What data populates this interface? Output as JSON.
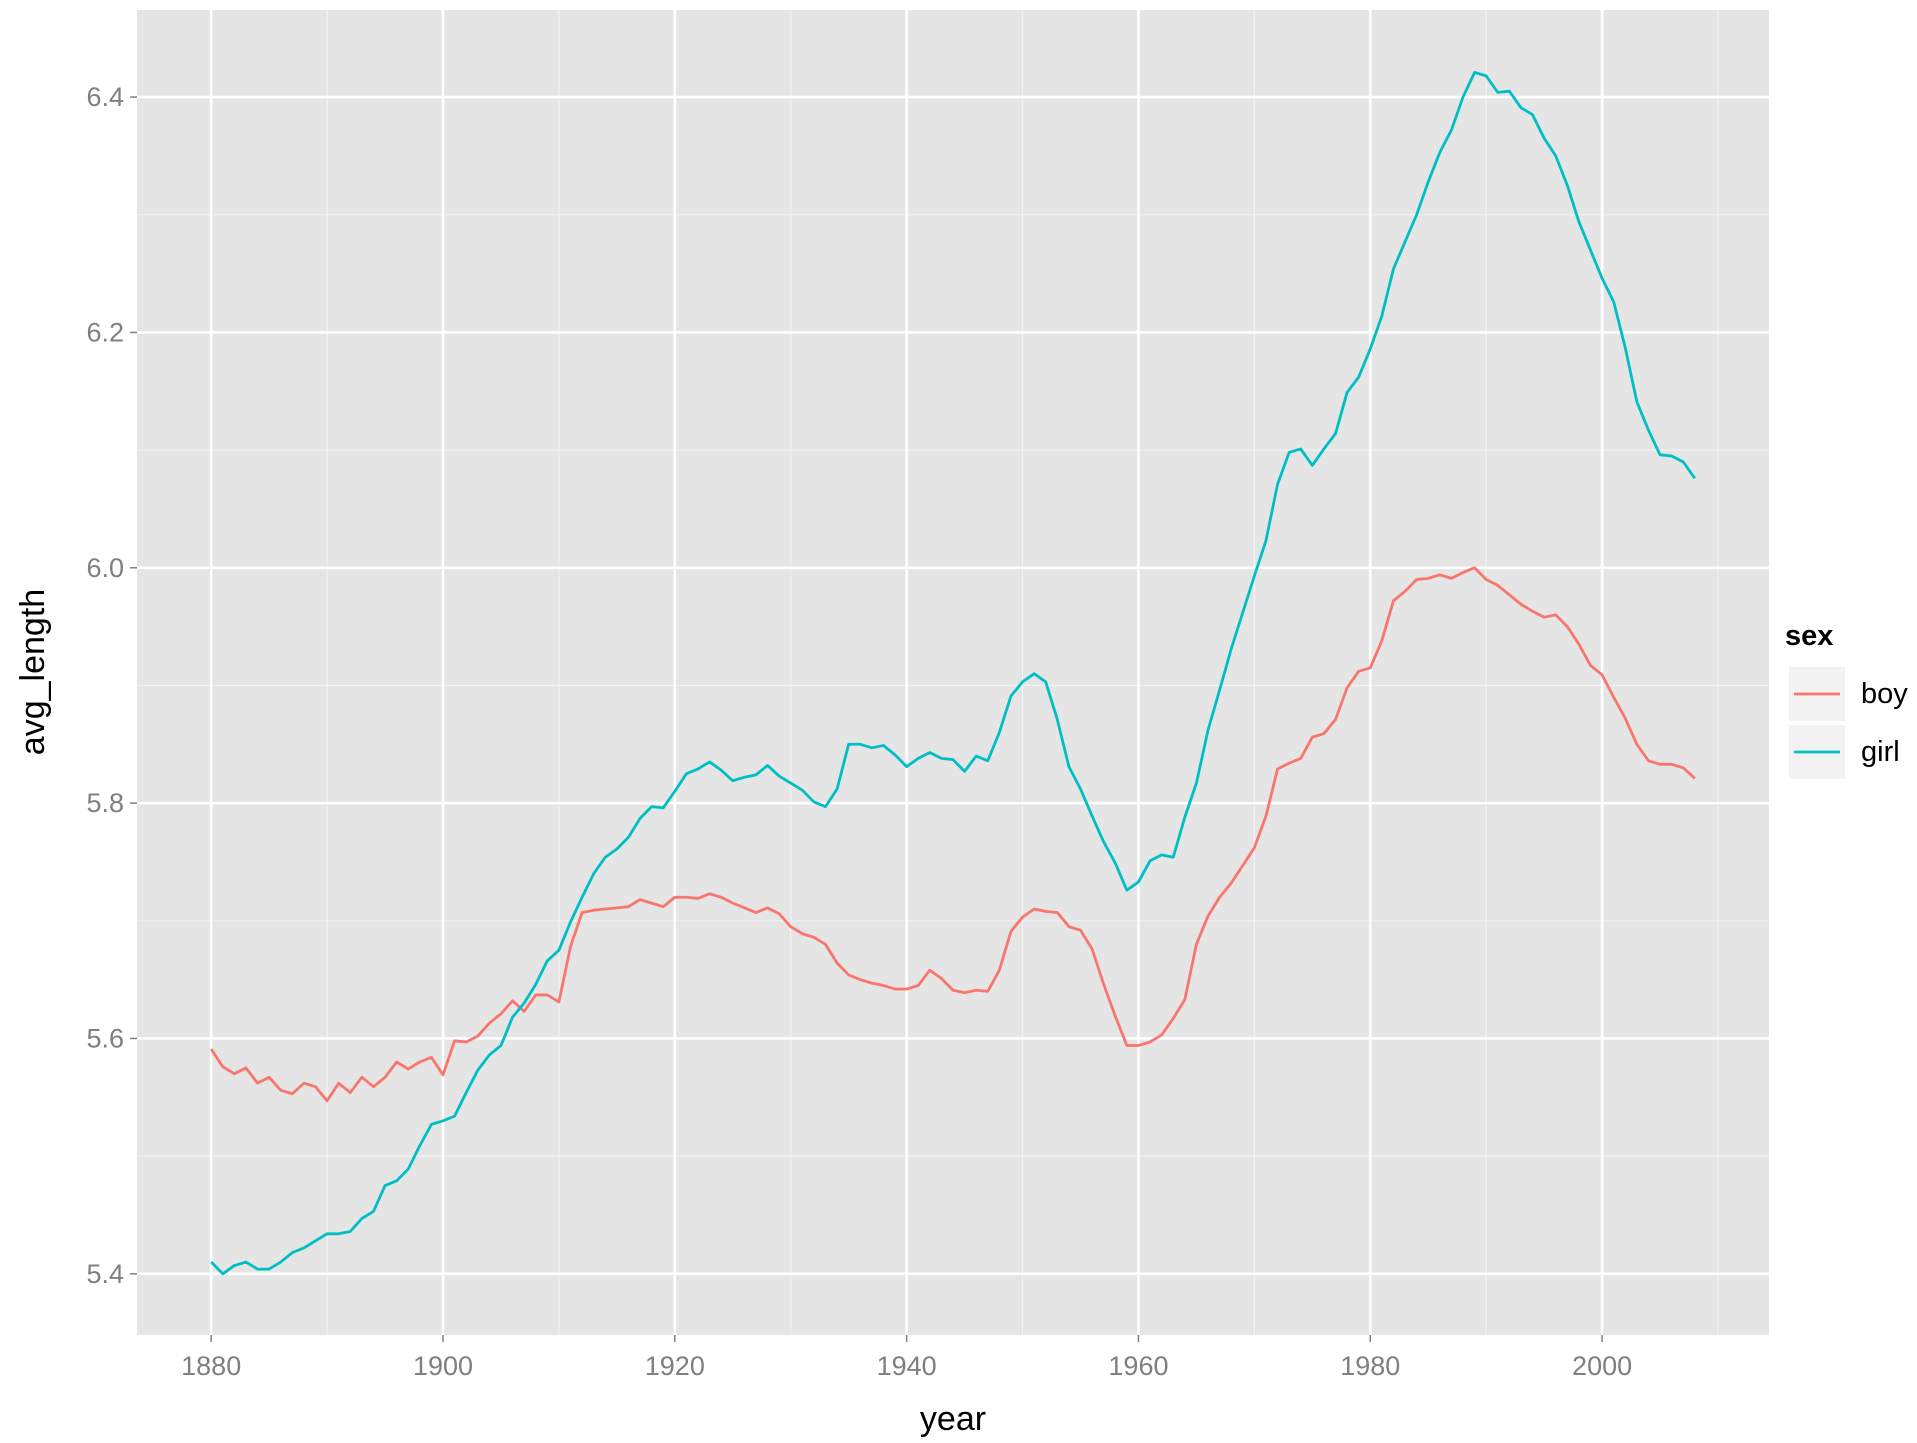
{
  "chart_data": {
    "type": "line",
    "x_label": "year",
    "y_label": "avg_length",
    "legend_title": "sex",
    "legend": "right",
    "grid": true,
    "xlim": [
      1873.6,
      2014.4
    ],
    "ylim": [
      5.348,
      6.474
    ],
    "xticks": [
      1880,
      1900,
      1920,
      1940,
      1960,
      1980,
      2000
    ],
    "yticks": [
      {
        "value": 5.4,
        "label": "5.4"
      },
      {
        "value": 5.6,
        "label": "5.6"
      },
      {
        "value": 5.8,
        "label": "5.8"
      },
      {
        "value": 6.0,
        "label": "6.0"
      },
      {
        "value": 6.2,
        "label": "6.2"
      },
      {
        "value": 6.4,
        "label": "6.4"
      }
    ],
    "x": [
      1880,
      1881,
      1882,
      1883,
      1884,
      1885,
      1886,
      1887,
      1888,
      1889,
      1890,
      1891,
      1892,
      1893,
      1894,
      1895,
      1896,
      1897,
      1898,
      1899,
      1900,
      1901,
      1902,
      1903,
      1904,
      1905,
      1906,
      1907,
      1908,
      1909,
      1910,
      1911,
      1912,
      1913,
      1914,
      1915,
      1916,
      1917,
      1918,
      1919,
      1920,
      1921,
      1922,
      1923,
      1924,
      1925,
      1926,
      1927,
      1928,
      1929,
      1930,
      1931,
      1932,
      1933,
      1934,
      1935,
      1936,
      1937,
      1938,
      1939,
      1940,
      1941,
      1942,
      1943,
      1944,
      1945,
      1946,
      1947,
      1948,
      1949,
      1950,
      1951,
      1952,
      1953,
      1954,
      1955,
      1956,
      1957,
      1958,
      1959,
      1960,
      1961,
      1962,
      1963,
      1964,
      1965,
      1966,
      1967,
      1968,
      1969,
      1970,
      1971,
      1972,
      1973,
      1974,
      1975,
      1976,
      1977,
      1978,
      1979,
      1980,
      1981,
      1982,
      1983,
      1984,
      1985,
      1986,
      1987,
      1988,
      1989,
      1990,
      1991,
      1992,
      1993,
      1994,
      1995,
      1996,
      1997,
      1998,
      1999,
      2000,
      2001,
      2002,
      2003,
      2004,
      2005,
      2006,
      2007,
      2008
    ],
    "series": [
      {
        "name": "boy",
        "color": "#f8766d",
        "values": [
          5.591,
          5.576,
          5.57,
          5.575,
          5.562,
          5.567,
          5.556,
          5.553,
          5.562,
          5.559,
          5.547,
          5.562,
          5.554,
          5.567,
          5.559,
          5.567,
          5.58,
          5.574,
          5.58,
          5.584,
          5.569,
          5.598,
          5.597,
          5.602,
          5.613,
          5.621,
          5.632,
          5.623,
          5.637,
          5.637,
          5.631,
          5.678,
          5.707,
          5.709,
          5.71,
          5.711,
          5.712,
          5.718,
          5.715,
          5.712,
          5.72,
          5.72,
          5.719,
          5.723,
          5.72,
          5.715,
          5.711,
          5.707,
          5.711,
          5.706,
          5.695,
          5.689,
          5.686,
          5.68,
          5.664,
          5.654,
          5.65,
          5.647,
          5.645,
          5.642,
          5.642,
          5.645,
          5.658,
          5.651,
          5.641,
          5.639,
          5.641,
          5.64,
          5.658,
          5.691,
          5.703,
          5.71,
          5.708,
          5.707,
          5.695,
          5.692,
          5.676,
          5.646,
          5.619,
          5.594,
          5.594,
          5.597,
          5.603,
          5.617,
          5.633,
          5.68,
          5.704,
          5.72,
          5.732,
          5.747,
          5.762,
          5.789,
          5.829,
          5.834,
          5.838,
          5.856,
          5.859,
          5.871,
          5.898,
          5.912,
          5.915,
          5.938,
          5.972,
          5.98,
          5.99,
          5.991,
          5.994,
          5.991,
          5.996,
          6.0,
          5.99,
          5.985,
          5.977,
          5.969,
          5.963,
          5.958,
          5.96,
          5.95,
          5.935,
          5.917,
          5.909,
          5.89,
          5.872,
          5.85,
          5.836,
          5.833,
          5.833,
          5.83,
          5.821
        ]
      },
      {
        "name": "girl",
        "color": "#00bfc4",
        "values": [
          5.41,
          5.4,
          5.407,
          5.41,
          5.404,
          5.404,
          5.41,
          5.418,
          5.422,
          5.428,
          5.434,
          5.434,
          5.436,
          5.447,
          5.453,
          5.475,
          5.479,
          5.489,
          5.509,
          5.527,
          5.53,
          5.534,
          5.554,
          5.573,
          5.586,
          5.594,
          5.618,
          5.63,
          5.646,
          5.666,
          5.675,
          5.699,
          5.72,
          5.74,
          5.754,
          5.761,
          5.771,
          5.787,
          5.797,
          5.796,
          5.81,
          5.825,
          5.829,
          5.835,
          5.828,
          5.819,
          5.822,
          5.824,
          5.832,
          5.823,
          5.817,
          5.811,
          5.801,
          5.797,
          5.812,
          5.85,
          5.85,
          5.847,
          5.849,
          5.841,
          5.831,
          5.838,
          5.843,
          5.838,
          5.837,
          5.827,
          5.84,
          5.836,
          5.86,
          5.891,
          5.903,
          5.91,
          5.903,
          5.871,
          5.831,
          5.812,
          5.789,
          5.767,
          5.749,
          5.726,
          5.733,
          5.751,
          5.756,
          5.754,
          5.788,
          5.817,
          5.862,
          5.896,
          5.931,
          5.962,
          5.993,
          6.023,
          6.071,
          6.098,
          6.101,
          6.087,
          6.101,
          6.114,
          6.149,
          6.162,
          6.186,
          6.214,
          6.254,
          6.277,
          6.3,
          6.328,
          6.353,
          6.372,
          6.4,
          6.421,
          6.418,
          6.404,
          6.405,
          6.391,
          6.385,
          6.365,
          6.35,
          6.325,
          6.294,
          6.27,
          6.246,
          6.226,
          6.187,
          6.141,
          6.117,
          6.096,
          6.095,
          6.09,
          6.076
        ]
      }
    ]
  }
}
